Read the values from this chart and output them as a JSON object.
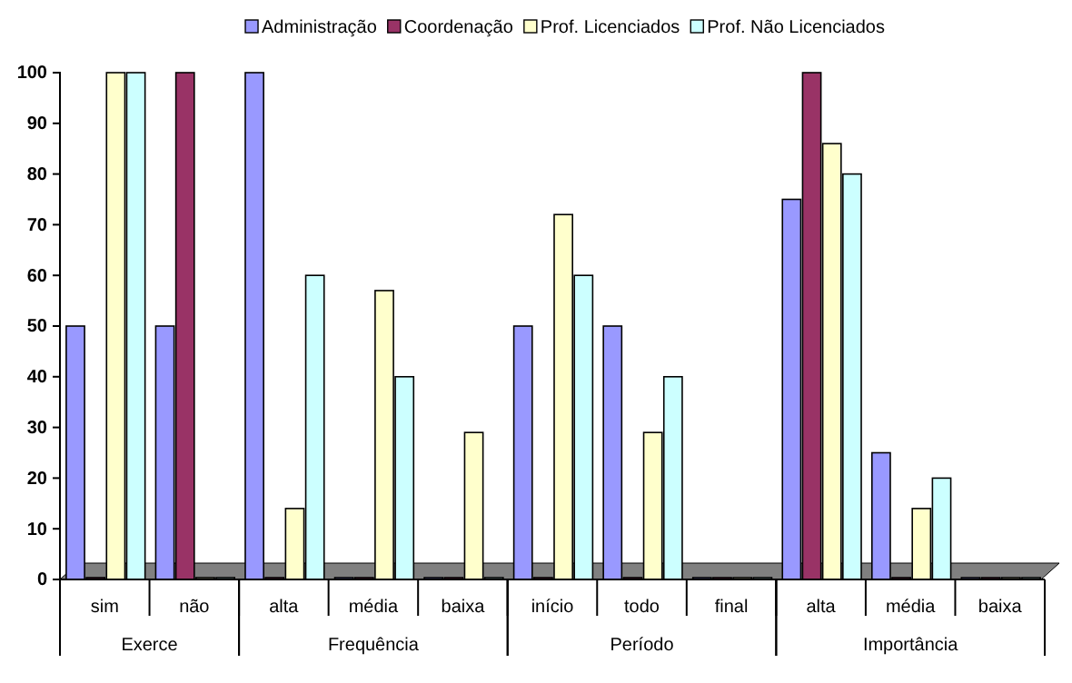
{
  "chart_data": {
    "type": "bar",
    "categories": [
      "sim",
      "não",
      "alta",
      "média",
      "baixa",
      "início",
      "todo",
      "final",
      "alta",
      "média",
      "baixa"
    ],
    "series": [
      {
        "name": "Administração",
        "color": "#9999ff",
        "values": [
          50,
          50,
          100,
          0,
          0,
          50,
          50,
          0,
          75,
          25,
          0
        ]
      },
      {
        "name": "Coordenação",
        "color": "#993366",
        "values": [
          0,
          100,
          0,
          0,
          0,
          0,
          0,
          0,
          100,
          0,
          0
        ]
      },
      {
        "name": "Prof. Licenciados",
        "color": "#ffffcc",
        "values": [
          100,
          0,
          14,
          57,
          29,
          72,
          29,
          0,
          86,
          14,
          0
        ]
      },
      {
        "name": "Prof. Não Licenciados",
        "color": "#ccffff",
        "values": [
          100,
          0,
          60,
          40,
          0,
          60,
          40,
          0,
          80,
          20,
          0
        ]
      }
    ],
    "annotations": [
      "Exerce",
      "Frequência",
      "Período",
      "Importância"
    ],
    "ylim": [
      0,
      100
    ],
    "yticks": [
      0,
      10,
      20,
      30,
      40,
      50,
      60,
      70,
      80,
      90,
      100
    ],
    "grid": false,
    "legend": "top"
  }
}
